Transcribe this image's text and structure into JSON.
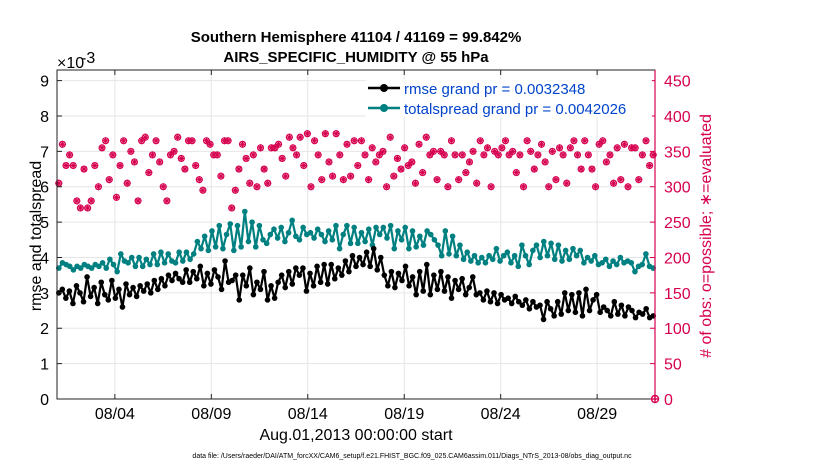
{
  "figure": {
    "title_line1": "Southern Hemisphere 41104 / 41169 = 99.842%",
    "title_line2": "AIRS_SPECIFIC_HUMIDITY @ 55 hPa",
    "footer": "data file: /Users/raeder/DAI/ATM_forcXX/CAM6_setup/f.e21.FHIST_BGC.f09_025.CAM6assim.011/Diags_NTrS_2013-08/obs_diag_output.nc"
  },
  "chart_data": {
    "type": "line",
    "xlabel": "Aug.01,2013 00:00:00 start",
    "ylabel_left": "rmse and totalspread",
    "ylabel_right": "# of obs: o=possible; ∗=evaluated",
    "y_exponent_label": "×10",
    "y_exponent_power": "-3",
    "xlim": [
      0,
      31
    ],
    "ylim_left": [
      0,
      9.3
    ],
    "ylim_right": [
      0,
      465
    ],
    "x_tick_values": [
      3,
      8,
      13,
      18,
      23,
      28
    ],
    "x_tick_labels": [
      "08/04",
      "08/09",
      "08/14",
      "08/19",
      "08/24",
      "08/29"
    ],
    "y_left_ticks": [
      "0",
      "1",
      "2",
      "3",
      "4",
      "5",
      "6",
      "7",
      "8",
      "9"
    ],
    "y_right_ticks": [
      "0",
      "50",
      "100",
      "150",
      "200",
      "250",
      "300",
      "350",
      "400",
      "450"
    ],
    "legend_position": "top-right",
    "grid": true,
    "colors": {
      "rmse": "#000000",
      "spread": "#008080",
      "obs": "#d6004f",
      "right_axis": "#d6004f",
      "legend_text": "#0044cc"
    },
    "series": [
      {
        "name": "rmse grand pr = 0.0032348",
        "values": [
          3.0,
          3.1,
          2.85,
          3.05,
          2.7,
          3.2,
          3.0,
          2.75,
          3.45,
          2.9,
          3.15,
          2.7,
          3.3,
          2.95,
          2.8,
          3.35,
          2.85,
          3.1,
          2.6,
          3.25,
          2.95,
          3.15,
          2.9,
          3.2,
          3.05,
          3.25,
          3.0,
          3.35,
          3.1,
          3.4,
          3.2,
          3.5,
          3.35,
          3.55,
          3.4,
          3.3,
          3.65,
          3.3,
          3.6,
          3.4,
          3.75,
          3.2,
          3.55,
          3.25,
          3.65,
          3.45,
          3.1,
          3.9,
          3.3,
          3.35,
          3.5,
          2.8,
          3.5,
          3.2,
          3.7,
          2.95,
          3.3,
          3.1,
          3.6,
          2.8,
          3.2,
          2.85,
          3.3,
          3.5,
          3.15,
          3.6,
          3.25,
          3.7,
          3.5,
          3.7,
          3.05,
          3.55,
          3.2,
          3.75,
          3.3,
          3.8,
          3.25,
          3.8,
          3.4,
          3.7,
          3.5,
          3.9,
          3.6,
          4.05,
          3.75,
          4.0,
          3.8,
          4.15,
          3.75,
          4.25,
          3.65,
          4.0,
          3.5,
          3.2,
          3.6,
          3.15,
          3.55,
          3.35,
          3.75,
          3.2,
          3.45,
          2.95,
          3.6,
          3.05,
          3.8,
          2.95,
          3.5,
          3.1,
          3.6,
          3.05,
          3.45,
          2.85,
          3.35,
          3.1,
          3.4,
          2.95,
          3.15,
          3.45,
          2.95,
          3.0,
          2.8,
          3.05,
          2.75,
          3.0,
          2.7,
          2.95,
          2.8,
          2.85,
          2.7,
          2.9,
          2.75,
          2.65,
          2.8,
          2.55,
          2.75,
          2.6,
          2.65,
          2.25,
          2.75,
          2.55,
          2.35,
          2.75,
          2.4,
          3.0,
          2.5,
          2.95,
          2.45,
          3.0,
          2.35,
          3.1,
          2.5,
          2.8,
          2.95,
          2.45,
          2.6,
          2.5,
          2.35,
          2.75,
          2.4,
          2.65,
          2.35,
          2.6,
          2.5,
          2.3,
          2.45,
          2.4,
          2.55,
          2.3,
          2.35
        ]
      },
      {
        "name": "totalspread grand pr = 0.0042026",
        "values": [
          3.7,
          3.85,
          3.8,
          3.75,
          3.65,
          3.75,
          3.7,
          3.8,
          3.75,
          3.7,
          3.8,
          3.75,
          3.85,
          3.7,
          3.95,
          3.8,
          3.6,
          4.1,
          3.9,
          3.85,
          4.0,
          3.75,
          4.0,
          3.75,
          3.95,
          3.8,
          4.1,
          3.8,
          4.15,
          3.85,
          4.1,
          3.9,
          3.85,
          4.15,
          3.9,
          4.15,
          3.95,
          4.1,
          4.45,
          4.25,
          4.6,
          4.2,
          4.75,
          4.3,
          4.9,
          4.25,
          4.65,
          4.95,
          4.2,
          4.9,
          4.3,
          5.3,
          4.45,
          5.0,
          4.3,
          4.9,
          4.5,
          4.4,
          4.65,
          4.8,
          4.55,
          4.85,
          4.45,
          4.7,
          5.05,
          4.6,
          4.5,
          4.85,
          4.65,
          4.7,
          4.55,
          4.8,
          4.65,
          4.45,
          4.75,
          4.5,
          4.9,
          4.25,
          4.65,
          4.9,
          4.4,
          4.85,
          4.4,
          4.7,
          4.45,
          4.8,
          4.35,
          4.85,
          4.65,
          4.85,
          4.55,
          4.9,
          4.25,
          4.75,
          4.5,
          4.85,
          4.25,
          4.75,
          4.3,
          4.6,
          4.35,
          4.75,
          4.65,
          4.5,
          4.35,
          4.05,
          4.75,
          4.1,
          4.6,
          4.05,
          4.35,
          3.95,
          4.15,
          3.9,
          4.05,
          3.85,
          4.0,
          3.85,
          4.05,
          3.95,
          4.25,
          3.9,
          4.05,
          4.15,
          3.85,
          4.05,
          3.75,
          4.35,
          4.05,
          3.8,
          4.2,
          4.35,
          4.0,
          4.45,
          4.05,
          4.4,
          3.95,
          4.35,
          3.9,
          4.2,
          3.95,
          4.25,
          4.05,
          4.2,
          3.85,
          4.0,
          3.9,
          4.05,
          3.8,
          3.85,
          3.95,
          3.75,
          3.9,
          3.8,
          4.0,
          3.85,
          3.9,
          3.85,
          3.6,
          3.75,
          3.8,
          4.1,
          3.75,
          3.7
        ]
      }
    ],
    "obs": {
      "name": "# of obs",
      "possible": [
        305,
        360,
        330,
        345,
        330,
        280,
        270,
        325,
        270,
        280,
        330,
        300,
        355,
        365,
        310,
        345,
        285,
        330,
        365,
        305,
        350,
        335,
        280,
        365,
        370,
        320,
        345,
        365,
        335,
        300,
        280,
        345,
        350,
        370,
        340,
        325,
        365,
        365,
        330,
        310,
        295,
        365,
        360,
        345,
        345,
        315,
        365,
        365,
        270,
        295,
        325,
        360,
        340,
        305,
        345,
        300,
        355,
        325,
        305,
        355,
        355,
        360,
        340,
        315,
        370,
        355,
        345,
        370,
        330,
        375,
        300,
        365,
        345,
        310,
        375,
        335,
        315,
        375,
        345,
        310,
        360,
        315,
        365,
        330,
        365,
        345,
        310,
        355,
        335,
        345,
        350,
        300,
        370,
        315,
        340,
        325,
        355,
        330,
        335,
        305,
        360,
        320,
        370,
        345,
        350,
        310,
        350,
        345,
        300,
        365,
        345,
        310,
        345,
        320,
        335,
        350,
        305,
        365,
        345,
        355,
        300,
        350,
        345,
        355,
        365,
        345,
        350,
        320,
        345,
        300,
        365,
        350,
        325,
        345,
        360,
        335,
        300,
        350,
        310,
        355,
        345,
        305,
        355,
        365,
        345,
        325,
        365,
        345,
        325,
        300,
        360,
        365,
        335,
        345,
        305,
        355,
        310,
        360,
        300,
        355,
        355,
        310,
        345,
        365,
        330,
        345
      ]
    },
    "legend": [
      {
        "label": "rmse grand pr = 0.0032348"
      },
      {
        "label": "totalspread grand pr = 0.0042026"
      }
    ]
  }
}
